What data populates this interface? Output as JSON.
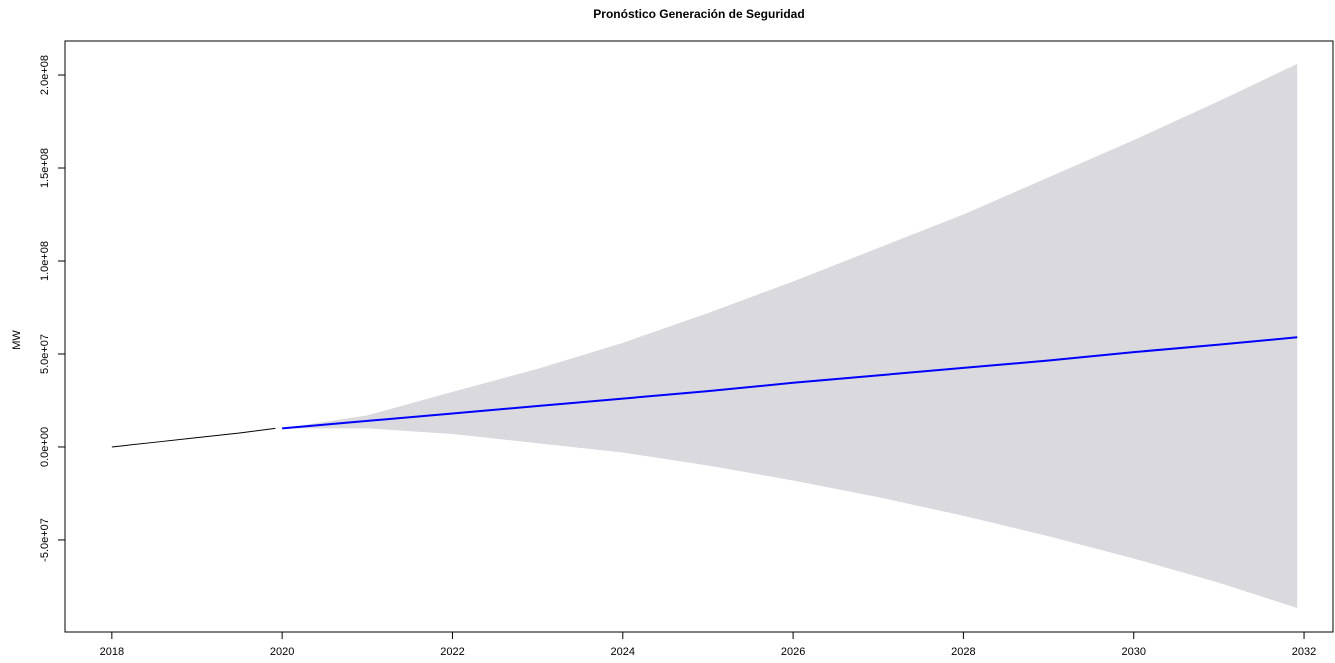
{
  "chart_data": {
    "type": "forecast",
    "title": "Pronóstico Generación de Seguridad",
    "y_label": "MW",
    "xlim": [
      2017.45,
      2032.34
    ],
    "ylim": [
      -99500000,
      218300000
    ],
    "xticks": [
      2018,
      2020,
      2022,
      2024,
      2026,
      2028,
      2030,
      2032
    ],
    "yticks": [
      {
        "value": -50000000,
        "label": "-5.0e+07"
      },
      {
        "value": 0,
        "label": "0.0e+00"
      },
      {
        "value": 50000000,
        "label": "5.0e+07"
      },
      {
        "value": 100000000,
        "label": "1.0e+08"
      },
      {
        "value": 150000000,
        "label": "1.5e+08"
      },
      {
        "value": 200000000,
        "label": "2.0e+08"
      }
    ],
    "band": {
      "color": "#d9d9de",
      "x": [
        2020,
        2021,
        2022,
        2023,
        2024,
        2025,
        2026,
        2027,
        2028,
        2029,
        2030,
        2031,
        2031.92
      ],
      "upper": [
        10000000,
        17000000,
        29600000,
        42000000,
        56000000,
        72000000,
        89000000,
        107000000,
        125000000,
        145000000,
        165000000,
        186000000,
        206000000
      ],
      "lower": [
        10000000,
        10000000,
        7000000,
        2000000,
        -3000000,
        -10000000,
        -18000000,
        -27000000,
        -37000000,
        -48000000,
        -60000000,
        -73000000,
        -86600000
      ]
    },
    "series": [
      {
        "color": "#000000",
        "x": [
          2018,
          2018.5,
          2019,
          2019.5,
          2019.92
        ],
        "values": [
          0,
          2500000,
          5000000,
          7500000,
          10000000
        ]
      },
      {
        "color": "#0000ff",
        "x": [
          2020,
          2021,
          2022,
          2023,
          2024,
          2025,
          2026,
          2027,
          2028,
          2029,
          2030,
          2031,
          2031.92
        ],
        "values": [
          10000000,
          14000000,
          18000000,
          22000000,
          26000000,
          30000000,
          34500000,
          38500000,
          42500000,
          46500000,
          51000000,
          55000000,
          59000000
        ]
      }
    ]
  }
}
